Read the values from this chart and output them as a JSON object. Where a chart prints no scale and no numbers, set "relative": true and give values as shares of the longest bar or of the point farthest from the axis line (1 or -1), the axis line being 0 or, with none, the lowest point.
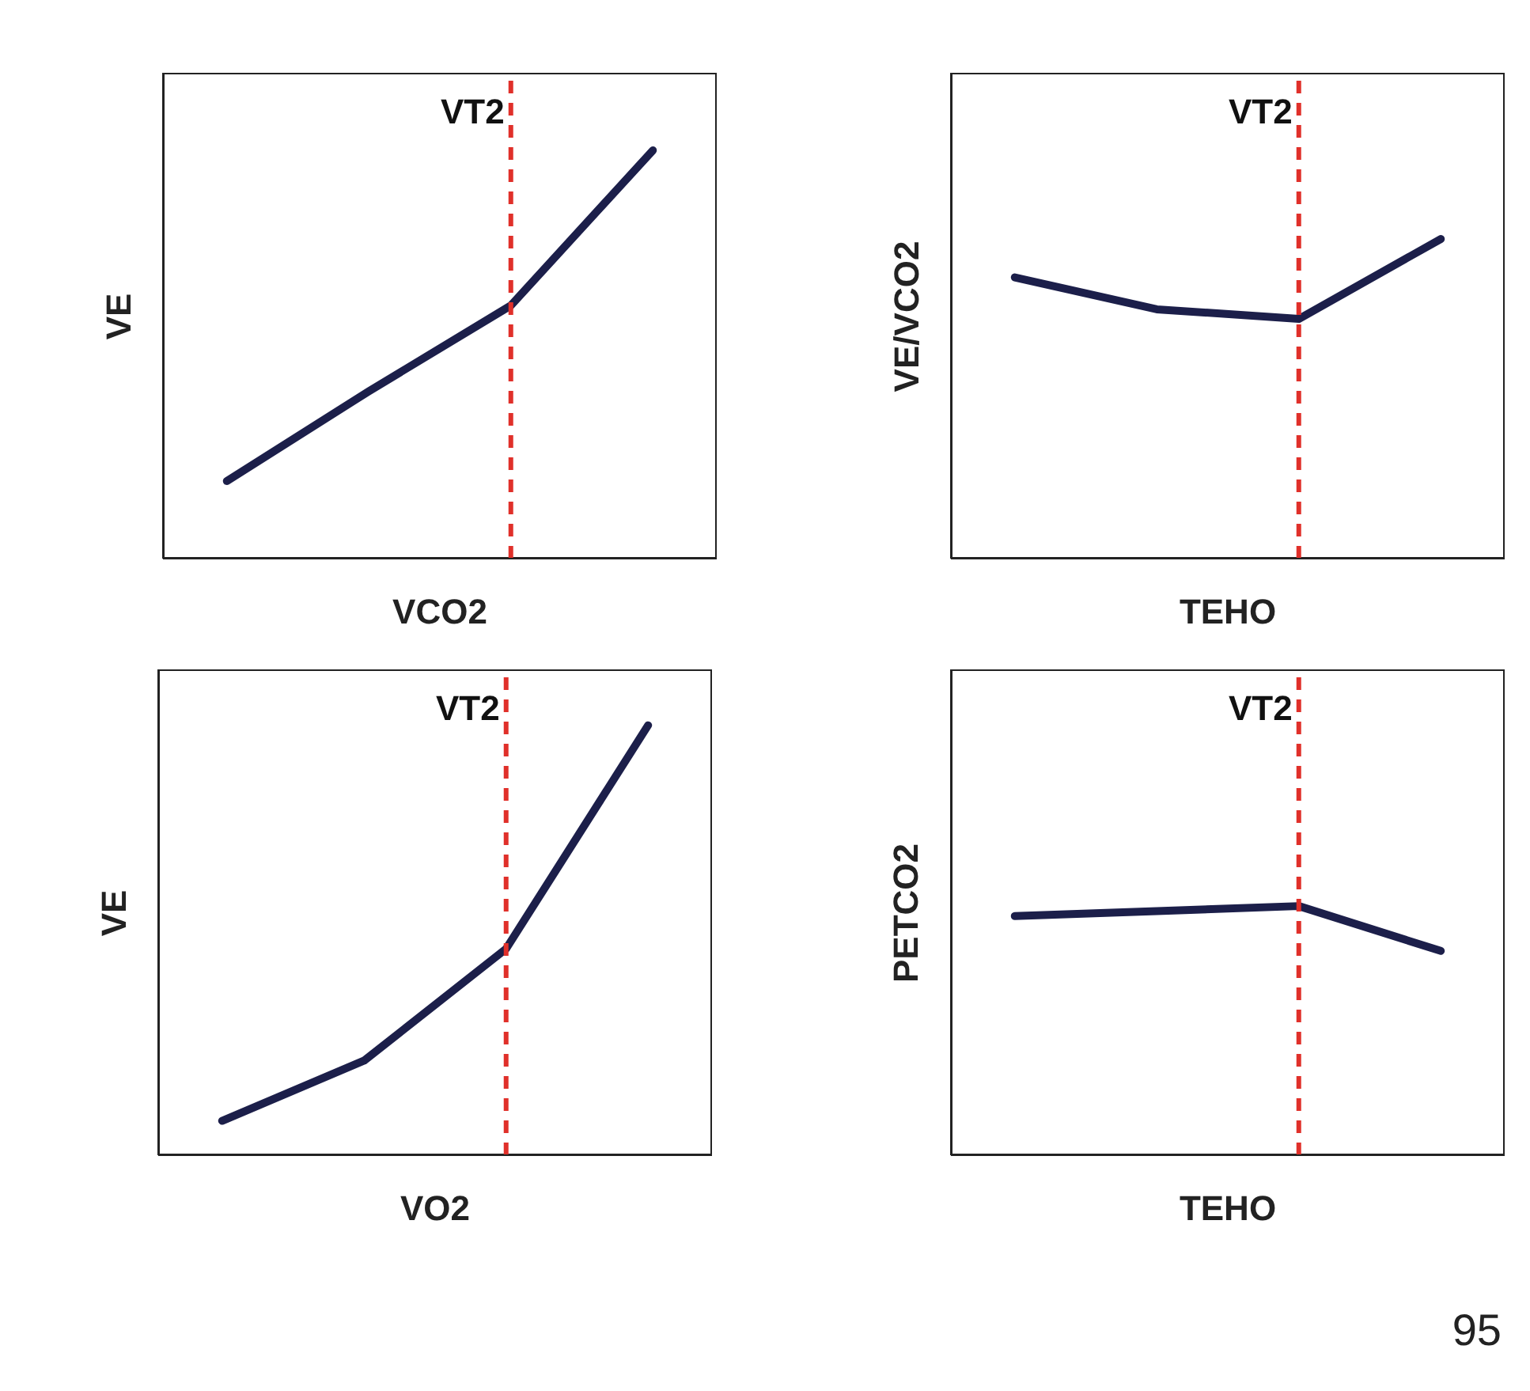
{
  "chart_data": [
    {
      "type": "line",
      "relative": true,
      "xlabel": "VCO2",
      "ylabel": "VE",
      "categories": [
        null,
        null,
        null,
        null
      ],
      "grid": false,
      "legend": false,
      "marker": "none",
      "line_style": "solid",
      "annotations": [
        "VT2"
      ],
      "series": [
        {
          "color": "#1c1f4a",
          "values": [
            0.19,
            0.41,
            0.62,
            1
          ]
        }
      ]
    },
    {
      "type": "line",
      "relative": true,
      "xlabel": "TEHO",
      "ylabel": "VE/VCO2",
      "categories": [
        null,
        null,
        null,
        null
      ],
      "grid": false,
      "legend": false,
      "marker": "none",
      "line_style": "solid",
      "annotations": [
        "VT2"
      ],
      "series": [
        {
          "color": "#1c1f4a",
          "values": [
            0.88,
            0.78,
            0.75,
            1
          ]
        }
      ]
    },
    {
      "type": "line",
      "relative": true,
      "xlabel": "VO2",
      "ylabel": "VE",
      "categories": [
        null,
        null,
        null,
        null
      ],
      "grid": false,
      "legend": false,
      "marker": "none",
      "line_style": "solid",
      "annotations": [
        "VT2"
      ],
      "series": [
        {
          "color": "#1c1f4a",
          "values": [
            0.08,
            0.22,
            0.48,
            1
          ]
        }
      ]
    },
    {
      "type": "line",
      "relative": true,
      "xlabel": "TEHO",
      "ylabel": "PETCO2",
      "categories": [
        null,
        null,
        null,
        null
      ],
      "grid": false,
      "legend": false,
      "marker": "none",
      "line_style": "solid",
      "annotations": [
        "VT2",
        "95"
      ],
      "series": [
        {
          "color": "#1c1f4a",
          "values": [
            0.96,
            0.98,
            1,
            0.82
          ]
        }
      ]
    }
  ]
}
